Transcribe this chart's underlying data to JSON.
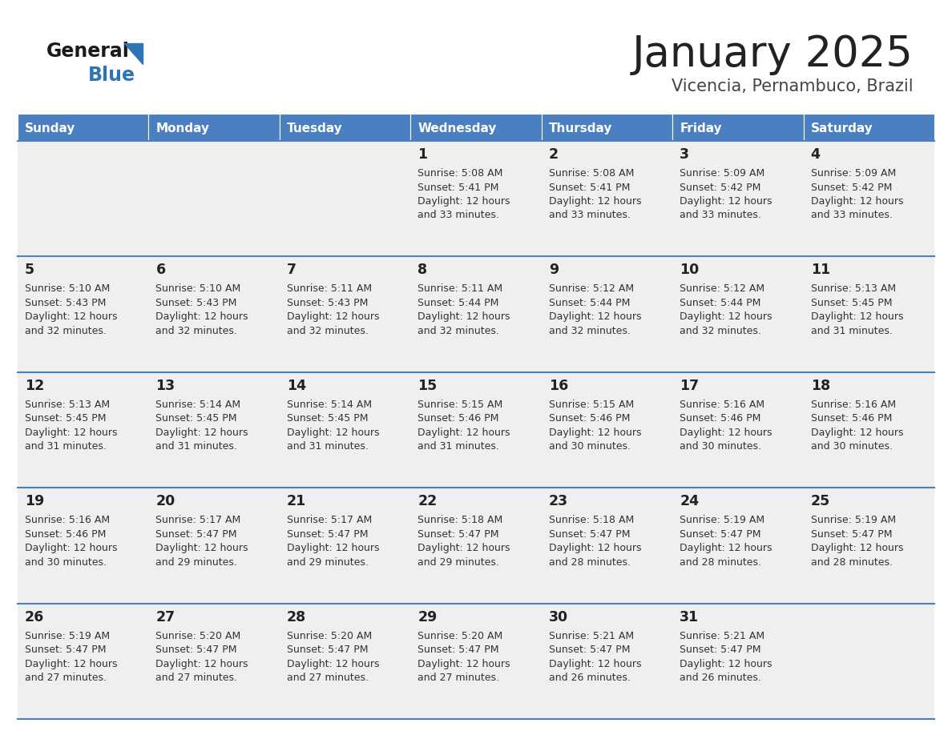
{
  "title": "January 2025",
  "subtitle": "Vicencia, Pernambuco, Brazil",
  "days_of_week": [
    "Sunday",
    "Monday",
    "Tuesday",
    "Wednesday",
    "Thursday",
    "Friday",
    "Saturday"
  ],
  "header_bg": "#4A7FC1",
  "header_text": "#FFFFFF",
  "row_bg": "#EFEFEF",
  "cell_border": "#4A7FC1",
  "day_num_color": "#222222",
  "info_text_color": "#333333",
  "title_color": "#222222",
  "subtitle_color": "#444444",
  "calendar": [
    [
      null,
      null,
      null,
      {
        "day": 1,
        "sunrise": "5:08 AM",
        "sunset": "5:41 PM",
        "daylight_line1": "Daylight: 12 hours",
        "daylight_line2": "and 33 minutes."
      },
      {
        "day": 2,
        "sunrise": "5:08 AM",
        "sunset": "5:41 PM",
        "daylight_line1": "Daylight: 12 hours",
        "daylight_line2": "and 33 minutes."
      },
      {
        "day": 3,
        "sunrise": "5:09 AM",
        "sunset": "5:42 PM",
        "daylight_line1": "Daylight: 12 hours",
        "daylight_line2": "and 33 minutes."
      },
      {
        "day": 4,
        "sunrise": "5:09 AM",
        "sunset": "5:42 PM",
        "daylight_line1": "Daylight: 12 hours",
        "daylight_line2": "and 33 minutes."
      }
    ],
    [
      {
        "day": 5,
        "sunrise": "5:10 AM",
        "sunset": "5:43 PM",
        "daylight_line1": "Daylight: 12 hours",
        "daylight_line2": "and 32 minutes."
      },
      {
        "day": 6,
        "sunrise": "5:10 AM",
        "sunset": "5:43 PM",
        "daylight_line1": "Daylight: 12 hours",
        "daylight_line2": "and 32 minutes."
      },
      {
        "day": 7,
        "sunrise": "5:11 AM",
        "sunset": "5:43 PM",
        "daylight_line1": "Daylight: 12 hours",
        "daylight_line2": "and 32 minutes."
      },
      {
        "day": 8,
        "sunrise": "5:11 AM",
        "sunset": "5:44 PM",
        "daylight_line1": "Daylight: 12 hours",
        "daylight_line2": "and 32 minutes."
      },
      {
        "day": 9,
        "sunrise": "5:12 AM",
        "sunset": "5:44 PM",
        "daylight_line1": "Daylight: 12 hours",
        "daylight_line2": "and 32 minutes."
      },
      {
        "day": 10,
        "sunrise": "5:12 AM",
        "sunset": "5:44 PM",
        "daylight_line1": "Daylight: 12 hours",
        "daylight_line2": "and 32 minutes."
      },
      {
        "day": 11,
        "sunrise": "5:13 AM",
        "sunset": "5:45 PM",
        "daylight_line1": "Daylight: 12 hours",
        "daylight_line2": "and 31 minutes."
      }
    ],
    [
      {
        "day": 12,
        "sunrise": "5:13 AM",
        "sunset": "5:45 PM",
        "daylight_line1": "Daylight: 12 hours",
        "daylight_line2": "and 31 minutes."
      },
      {
        "day": 13,
        "sunrise": "5:14 AM",
        "sunset": "5:45 PM",
        "daylight_line1": "Daylight: 12 hours",
        "daylight_line2": "and 31 minutes."
      },
      {
        "day": 14,
        "sunrise": "5:14 AM",
        "sunset": "5:45 PM",
        "daylight_line1": "Daylight: 12 hours",
        "daylight_line2": "and 31 minutes."
      },
      {
        "day": 15,
        "sunrise": "5:15 AM",
        "sunset": "5:46 PM",
        "daylight_line1": "Daylight: 12 hours",
        "daylight_line2": "and 31 minutes."
      },
      {
        "day": 16,
        "sunrise": "5:15 AM",
        "sunset": "5:46 PM",
        "daylight_line1": "Daylight: 12 hours",
        "daylight_line2": "and 30 minutes."
      },
      {
        "day": 17,
        "sunrise": "5:16 AM",
        "sunset": "5:46 PM",
        "daylight_line1": "Daylight: 12 hours",
        "daylight_line2": "and 30 minutes."
      },
      {
        "day": 18,
        "sunrise": "5:16 AM",
        "sunset": "5:46 PM",
        "daylight_line1": "Daylight: 12 hours",
        "daylight_line2": "and 30 minutes."
      }
    ],
    [
      {
        "day": 19,
        "sunrise": "5:16 AM",
        "sunset": "5:46 PM",
        "daylight_line1": "Daylight: 12 hours",
        "daylight_line2": "and 30 minutes."
      },
      {
        "day": 20,
        "sunrise": "5:17 AM",
        "sunset": "5:47 PM",
        "daylight_line1": "Daylight: 12 hours",
        "daylight_line2": "and 29 minutes."
      },
      {
        "day": 21,
        "sunrise": "5:17 AM",
        "sunset": "5:47 PM",
        "daylight_line1": "Daylight: 12 hours",
        "daylight_line2": "and 29 minutes."
      },
      {
        "day": 22,
        "sunrise": "5:18 AM",
        "sunset": "5:47 PM",
        "daylight_line1": "Daylight: 12 hours",
        "daylight_line2": "and 29 minutes."
      },
      {
        "day": 23,
        "sunrise": "5:18 AM",
        "sunset": "5:47 PM",
        "daylight_line1": "Daylight: 12 hours",
        "daylight_line2": "and 28 minutes."
      },
      {
        "day": 24,
        "sunrise": "5:19 AM",
        "sunset": "5:47 PM",
        "daylight_line1": "Daylight: 12 hours",
        "daylight_line2": "and 28 minutes."
      },
      {
        "day": 25,
        "sunrise": "5:19 AM",
        "sunset": "5:47 PM",
        "daylight_line1": "Daylight: 12 hours",
        "daylight_line2": "and 28 minutes."
      }
    ],
    [
      {
        "day": 26,
        "sunrise": "5:19 AM",
        "sunset": "5:47 PM",
        "daylight_line1": "Daylight: 12 hours",
        "daylight_line2": "and 27 minutes."
      },
      {
        "day": 27,
        "sunrise": "5:20 AM",
        "sunset": "5:47 PM",
        "daylight_line1": "Daylight: 12 hours",
        "daylight_line2": "and 27 minutes."
      },
      {
        "day": 28,
        "sunrise": "5:20 AM",
        "sunset": "5:47 PM",
        "daylight_line1": "Daylight: 12 hours",
        "daylight_line2": "and 27 minutes."
      },
      {
        "day": 29,
        "sunrise": "5:20 AM",
        "sunset": "5:47 PM",
        "daylight_line1": "Daylight: 12 hours",
        "daylight_line2": "and 27 minutes."
      },
      {
        "day": 30,
        "sunrise": "5:21 AM",
        "sunset": "5:47 PM",
        "daylight_line1": "Daylight: 12 hours",
        "daylight_line2": "and 26 minutes."
      },
      {
        "day": 31,
        "sunrise": "5:21 AM",
        "sunset": "5:47 PM",
        "daylight_line1": "Daylight: 12 hours",
        "daylight_line2": "and 26 minutes."
      },
      null
    ]
  ],
  "logo_general_color": "#1a1a1a",
  "logo_blue_color": "#2E75B6"
}
